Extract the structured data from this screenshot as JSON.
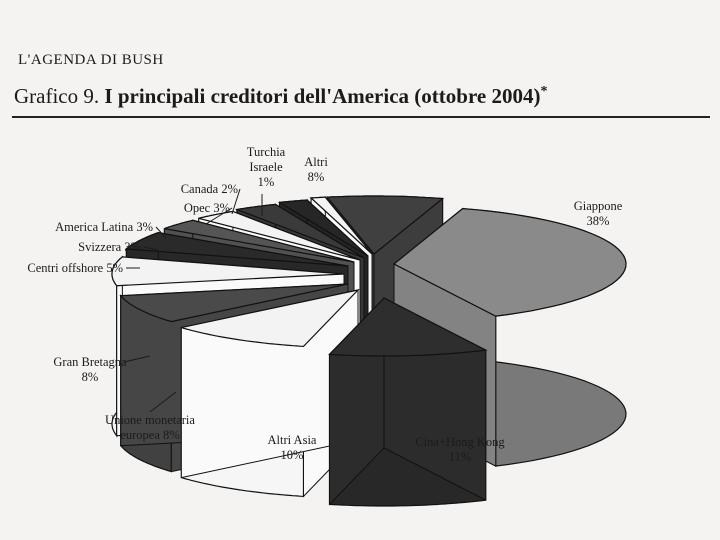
{
  "running_head": "L'AGENDA DI BUSH",
  "figure_label": "Grafico 9.",
  "figure_title": "I principali creditori dell'America (ottobre 2004)",
  "figure_note_mark": "*",
  "chart_data": {
    "type": "pie",
    "title": "I principali creditori dell'America (ottobre 2004)",
    "exploded_3d": true,
    "slices": [
      {
        "name": "Giappone",
        "label_lines": [
          "Giappone",
          "38%"
        ],
        "value": 38,
        "color": "#8a8a8a"
      },
      {
        "name": "Cina+Hong Kong",
        "label_lines": [
          "Cina+Hong Kong",
          "11%"
        ],
        "value": 11,
        "color": "#2e2e2e"
      },
      {
        "name": "Altri Asia",
        "label_lines": [
          "Altri Asia",
          "10%"
        ],
        "value": 10,
        "color": "#f3f3f3"
      },
      {
        "name": "Unione monetaria europea",
        "label_lines": [
          "Unione monetaria",
          "europea 8%"
        ],
        "value": 8,
        "color": "#4a4a4a"
      },
      {
        "name": "Gran Bretagna",
        "label_lines": [
          "Gran Bretagna",
          "8%"
        ],
        "value": 8,
        "color": "#f3f3f3"
      },
      {
        "name": "Centri offshore",
        "label_lines": [
          "Centri offshore 5%"
        ],
        "value": 5,
        "color": "#2a2a2a"
      },
      {
        "name": "Svizzera",
        "label_lines": [
          "Svizzera 3%"
        ],
        "value": 3,
        "color": "#555555"
      },
      {
        "name": "America Latina",
        "label_lines": [
          "America Latina 3%"
        ],
        "value": 3,
        "color": "#f3f3f3"
      },
      {
        "name": "Opec",
        "label_lines": [
          "Opec 3%"
        ],
        "value": 3,
        "color": "#3a3a3a"
      },
      {
        "name": "Canada",
        "label_lines": [
          "Canada 2%"
        ],
        "value": 2,
        "color": "#262626"
      },
      {
        "name": "Turchia Israele",
        "label_lines": [
          "Turchia",
          "Israele",
          "1%"
        ],
        "value": 1,
        "color": "#f3f3f3"
      },
      {
        "name": "Altri",
        "label_lines": [
          "Altri",
          "8%"
        ],
        "value": 8,
        "color": "#404040"
      }
    ]
  }
}
